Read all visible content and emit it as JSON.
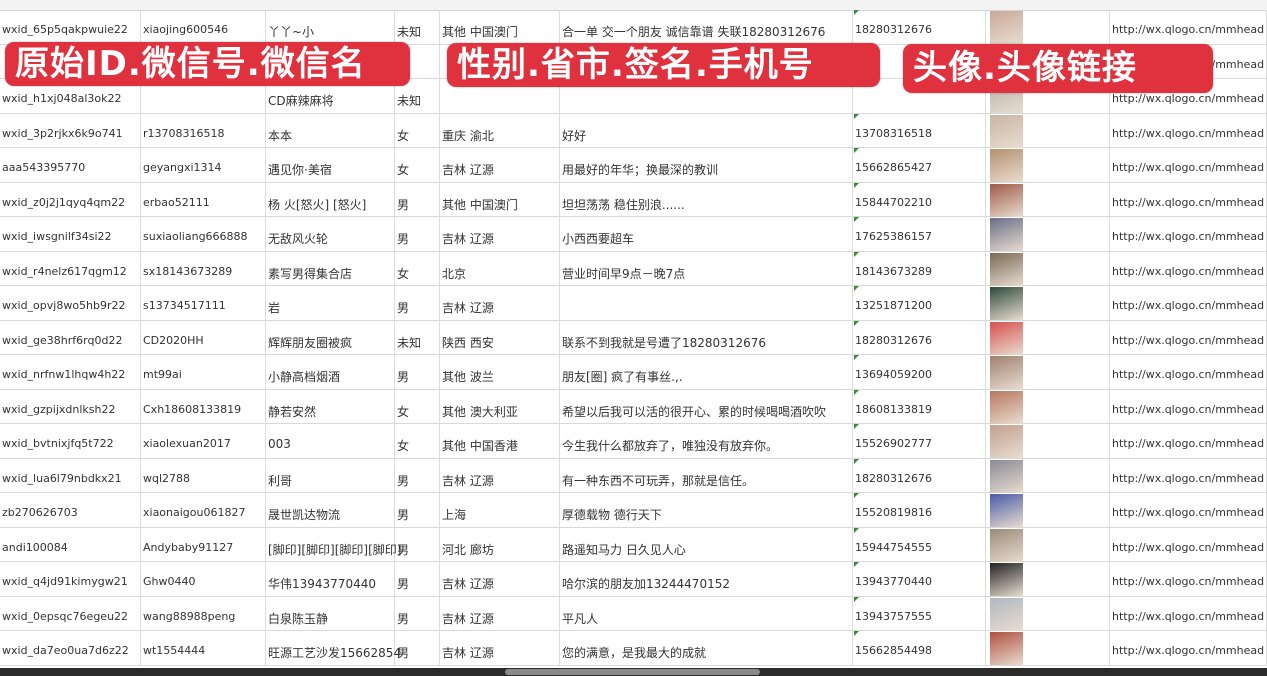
{
  "overlay_labels": [
    "原始ID.微信号.微信名",
    "性别.省市.签名.手机号",
    "头像.头像链接"
  ],
  "rows": [
    [
      "wxid_65p5qakpwuie22",
      "xiaojing600546",
      "丫丫~小",
      "未知",
      "其他 中国澳门",
      "合一单 交一个朋友 诚信靠谱 失联18280312676",
      "18280312676",
      "http://wx.qlogo.cn/mmhead"
    ],
    [
      "",
      "",
      "",
      "",
      "",
      "",
      "",
      "http://wx.qlogo.cn/mmhead"
    ],
    [
      "wxid_h1xj048al3ok22",
      "",
      "CD麻辣麻将",
      "未知",
      "",
      "",
      "",
      "http://wx.qlogo.cn/mmhead"
    ],
    [
      "wxid_3p2rjkx6k9o741",
      "r13708316518",
      "本本",
      "女",
      "重庆 渝北",
      "好好",
      "13708316518",
      "http://wx.qlogo.cn/mmhead"
    ],
    [
      "aaa543395770",
      "geyangxi1314",
      "遇见你·美宿",
      "女",
      "吉林 辽源",
      "用最好的年华；换最深的教训",
      "15662865427",
      "http://wx.qlogo.cn/mmhead"
    ],
    [
      "wxid_z0j2j1qyq4qm22",
      "erbao52111",
      "杨 火[怒火] [怒火]",
      "男",
      "其他 中国澳门",
      "坦坦荡荡 稳住别浪......",
      "15844702210",
      "http://wx.qlogo.cn/mmhead"
    ],
    [
      "wxid_iwsgnilf34si22",
      "suxiaoliang666888",
      "无敌风火轮",
      "男",
      "吉林 辽源",
      "小西西要超车",
      "17625386157",
      "http://wx.qlogo.cn/mmhead"
    ],
    [
      "wxid_r4nelz617qgm12",
      "sx18143673289",
      "素写男得集合店",
      "女",
      "北京",
      "营业时间早9点－晚7点",
      "18143673289",
      "http://wx.qlogo.cn/mmhead"
    ],
    [
      "wxid_opvj8wo5hb9r22",
      "s13734517111",
      "岩",
      "男",
      "吉林 辽源",
      "",
      "13251871200",
      "http://wx.qlogo.cn/mmhead"
    ],
    [
      "wxid_ge38hrf6rq0d22",
      "CD2020HH",
      "辉辉朋友圈被疯",
      "未知",
      "陕西 西安",
      "联系不到我就是号遭了18280312676",
      "18280312676",
      "http://wx.qlogo.cn/mmhead"
    ],
    [
      "wxid_nrfnw1lhqw4h22",
      "mt99ai",
      "小静高档烟酒",
      "男",
      "其他 波兰",
      "朋友[圈] 疯了有事丝.,.",
      "13694059200",
      "http://wx.qlogo.cn/mmhead"
    ],
    [
      "wxid_gzpijxdnlksh22",
      "Cxh18608133819",
      "静若安然",
      "女",
      "其他 澳大利亚",
      "希望以后我可以活的很开心、累的时候喝喝酒吹吹",
      "18608133819",
      "http://wx.qlogo.cn/mmhead"
    ],
    [
      "wxid_bvtnixjfq5t722",
      "xiaolexuan2017",
      "003",
      "女",
      "其他 中国香港",
      "今生我什么都放弃了，唯独没有放弃你。",
      "15526902777",
      "http://wx.qlogo.cn/mmhead"
    ],
    [
      "wxid_lua6l79nbdkx21",
      "wql2788",
      "利哥",
      "男",
      "吉林 辽源",
      "有一种东西不可玩弄，那就是信任。",
      "18280312676",
      "http://wx.qlogo.cn/mmhead"
    ],
    [
      "zb270626703",
      "xiaonaigou061827",
      "晟世凯达物流",
      "男",
      "上海",
      "厚德载物 德行天下",
      "15520819816",
      "http://wx.qlogo.cn/mmhead"
    ],
    [
      "andi100084",
      "Andybaby91127",
      "[脚印][脚印][脚印][脚印]",
      "男",
      "河北 廊坊",
      "路遥知马力 日久见人心",
      "15944754555",
      "http://wx.qlogo.cn/mmhead"
    ],
    [
      "wxid_q4jd91kimygw21",
      "Ghw0440",
      "华伟13943770440",
      "男",
      "吉林 辽源",
      "哈尔滨的朋友加13244470152",
      "13943770440",
      "http://wx.qlogo.cn/mmhead"
    ],
    [
      "wxid_0epsqc76egeu22",
      "wang88988peng",
      "白泉陈玉静",
      "男",
      "吉林 辽源",
      "平凡人",
      "13943757555",
      "http://wx.qlogo.cn/mmhead"
    ],
    [
      "wxid_da7eo0ua7d6z22",
      "wt1554444",
      "旺源工艺沙发15662854",
      "男",
      "吉林 辽源",
      "您的满意，是我最大的成就",
      "15662854498",
      "http://wx.qlogo.cn/mmhead"
    ]
  ],
  "avatar_colors": [
    "#c9a99a",
    "#8a7f9a",
    "#b8b0a8",
    "#c8b5a5",
    "#b59070",
    "#a05a48",
    "#6a6e88",
    "#7a6a55",
    "#2e4a3a",
    "#d85050",
    "#a08070",
    "#b87860",
    "#c0a090",
    "#8a8a95",
    "#4a5aa8",
    "#9a8a7a",
    "#222222",
    "#b0b8c0",
    "#b05040"
  ]
}
